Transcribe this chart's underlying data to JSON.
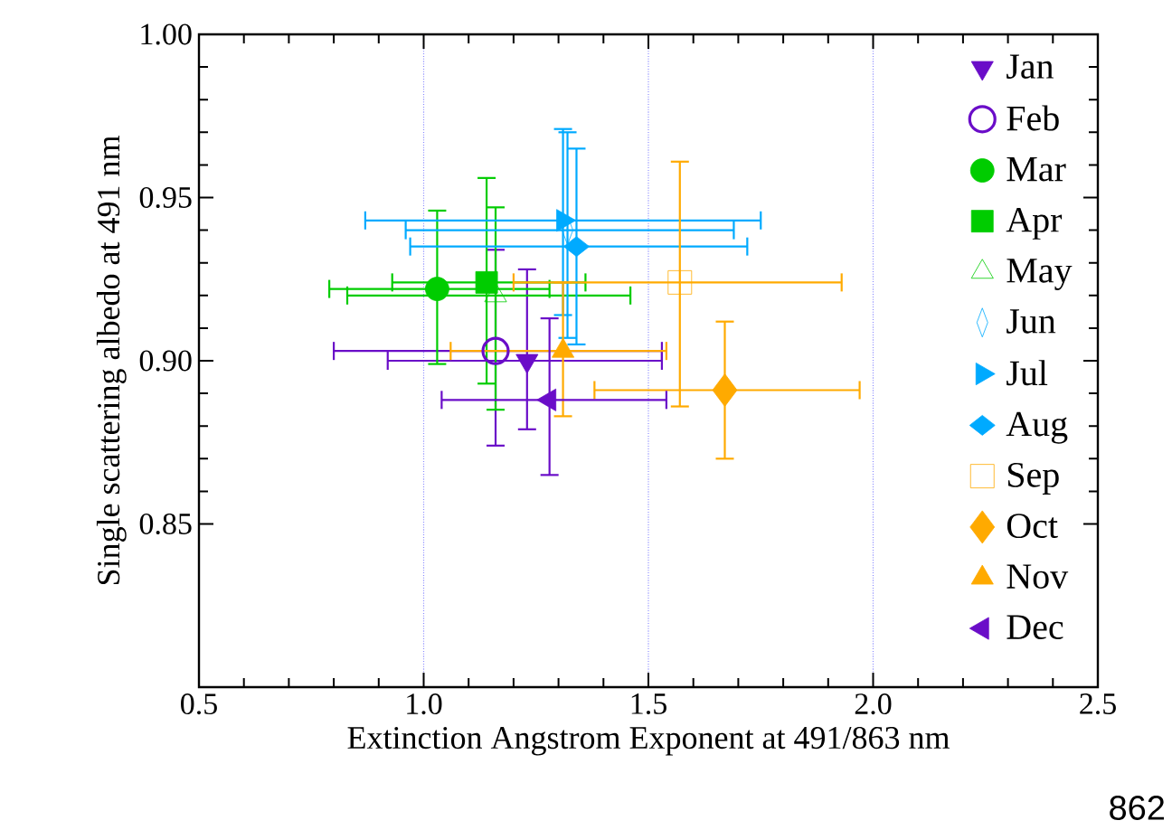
{
  "chart_data": {
    "type": "scatter",
    "xlabel": "Extinction Angstrom Exponent at 491/863 nm",
    "ylabel": "Single scattering albedo at 491 nm",
    "xlim": [
      0.5,
      2.5
    ],
    "ylim": [
      0.8,
      1.0
    ],
    "xticks": [
      0.5,
      {
        "value": 1.0,
        "label": "1.0"
      },
      1.5,
      {
        "value": 2.0,
        "label": "2.0"
      },
      2.5
    ],
    "yticks": [
      0.85,
      {
        "value": 0.9,
        "label": "0.90"
      },
      0.95,
      {
        "value": 1.0,
        "label": "1.00"
      }
    ],
    "grid": "x",
    "legend": "top right",
    "annotations": [
      "862"
    ],
    "series": [
      {
        "name": "Jan",
        "color": "#6a0dc8",
        "marker": "triangle-down",
        "x": [
          1.23
        ],
        "values": [
          0.9
        ],
        "xerrors": [
          [
            0.92,
            1.53
          ]
        ],
        "errors": [
          [
            0.879,
            0.928
          ]
        ]
      },
      {
        "name": "Feb",
        "color": "#6a0dc8",
        "marker": "circle-open",
        "x": [
          1.16
        ],
        "values": [
          0.903
        ],
        "xerrors": [
          [
            0.8,
            1.53
          ]
        ],
        "errors": [
          [
            0.874,
            0.934
          ]
        ]
      },
      {
        "name": "Mar",
        "color": "#00cc00",
        "marker": "circle",
        "x": [
          1.03
        ],
        "values": [
          0.922
        ],
        "xerrors": [
          [
            0.79,
            1.28
          ]
        ],
        "errors": [
          [
            0.899,
            0.946
          ]
        ]
      },
      {
        "name": "Apr",
        "color": "#00cc00",
        "marker": "square",
        "x": [
          1.14
        ],
        "values": [
          0.924
        ],
        "xerrors": [
          [
            0.93,
            1.36
          ]
        ],
        "errors": [
          [
            0.893,
            0.956
          ]
        ]
      },
      {
        "name": "May",
        "color": "#00cc00",
        "marker": "triangle-open",
        "x": [
          1.16
        ],
        "values": [
          0.92
        ],
        "xerrors": [
          [
            0.83,
            1.46
          ]
        ],
        "errors": [
          [
            0.885,
            0.947
          ]
        ]
      },
      {
        "name": "Jun",
        "color": "#00aaff",
        "marker": "diamond-open",
        "x": [
          1.32
        ],
        "values": [
          0.94
        ],
        "xerrors": [
          [
            0.96,
            1.69
          ]
        ],
        "errors": [
          [
            0.907,
            0.97
          ]
        ]
      },
      {
        "name": "Jul",
        "color": "#00aaff",
        "marker": "triangle-right",
        "x": [
          1.31
        ],
        "values": [
          0.943
        ],
        "xerrors": [
          [
            0.87,
            1.75
          ]
        ],
        "errors": [
          [
            0.914,
            0.971
          ]
        ]
      },
      {
        "name": "Aug",
        "color": "#00aaff",
        "marker": "diamond-wide",
        "x": [
          1.34
        ],
        "values": [
          0.935
        ],
        "xerrors": [
          [
            0.97,
            1.72
          ]
        ],
        "errors": [
          [
            0.905,
            0.965
          ]
        ]
      },
      {
        "name": "Sep",
        "color": "#ffaa00",
        "marker": "square-open",
        "x": [
          1.57
        ],
        "values": [
          0.924
        ],
        "xerrors": [
          [
            1.2,
            1.93
          ]
        ],
        "errors": [
          [
            0.886,
            0.961
          ]
        ]
      },
      {
        "name": "Oct",
        "color": "#ffaa00",
        "marker": "diamond",
        "x": [
          1.67
        ],
        "values": [
          0.891
        ],
        "xerrors": [
          [
            1.38,
            1.97
          ]
        ],
        "errors": [
          [
            0.87,
            0.912
          ]
        ]
      },
      {
        "name": "Nov",
        "color": "#ffaa00",
        "marker": "triangle",
        "x": [
          1.31
        ],
        "values": [
          0.903
        ],
        "xerrors": [
          [
            1.06,
            1.54
          ]
        ],
        "errors": [
          [
            0.883,
            0.924
          ]
        ]
      },
      {
        "name": "Dec",
        "color": "#6a0dc8",
        "marker": "triangle-left",
        "x": [
          1.28
        ],
        "values": [
          0.888
        ],
        "xerrors": [
          [
            1.04,
            1.54
          ]
        ],
        "errors": [
          [
            0.865,
            0.913
          ]
        ]
      }
    ]
  }
}
